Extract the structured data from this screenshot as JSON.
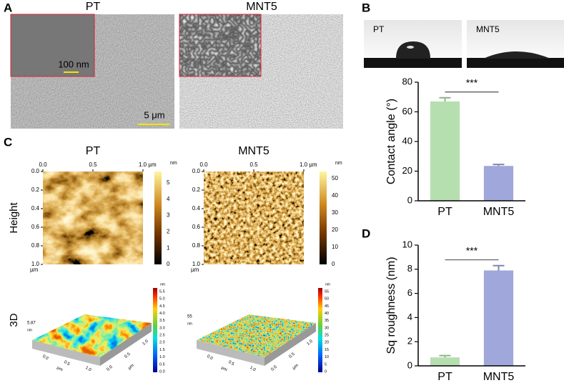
{
  "panel_labels": [
    "A",
    "B",
    "C",
    "D"
  ],
  "sem": {
    "titles": [
      "PT",
      "MNT5"
    ],
    "inset_scale": "100 nm",
    "scale": "5 μm"
  },
  "wetting": {
    "labels": [
      "PT",
      "MNT5"
    ]
  },
  "afm": {
    "titles": [
      "PT",
      "MNT5"
    ],
    "rows": [
      "Height",
      "3D"
    ],
    "x_ticks": [
      "0.0",
      "0.5",
      "1.0 µm"
    ],
    "y_ticks": [
      "0.0",
      "0.2",
      "0.4",
      "0.6",
      "0.8",
      "1.0"
    ],
    "y_unit": "µm",
    "unit": "nm",
    "height_cbar": [
      [
        "0",
        "1",
        "2",
        "3",
        "4",
        "5"
      ],
      [
        "0",
        "10",
        "20",
        "30",
        "40",
        "50"
      ]
    ],
    "cbar_3d": [
      [
        "0.0",
        "0.5",
        "1.0",
        "1.5",
        "2.0",
        "2.5",
        "3.0",
        "3.5",
        "4.0",
        "4.5",
        "5.0",
        "5.5"
      ],
      [
        "0",
        "5",
        "10",
        "15",
        "20",
        "25",
        "30",
        "35",
        "40",
        "45",
        "50",
        "55"
      ]
    ],
    "zmax_3d": [
      "5.87",
      "55"
    ],
    "axis_3d": [
      "0.0",
      "0.5",
      "1.0",
      "µm"
    ]
  },
  "chart_data": [
    {
      "type": "bar",
      "categories": [
        "PT",
        "MNT5"
      ],
      "values": [
        67,
        23.5
      ],
      "errors": [
        2.5,
        1
      ],
      "colors": [
        "#b6dfb0",
        "#9fa7db"
      ],
      "y_label": "Contact angle (°)",
      "annotation": "***",
      "ylim": [
        0,
        80
      ],
      "yticks": [
        0,
        20,
        40,
        60,
        80
      ]
    },
    {
      "type": "bar",
      "categories": [
        "PT",
        "MNT5"
      ],
      "values": [
        0.7,
        7.9
      ],
      "errors": [
        0.15,
        0.4
      ],
      "colors": [
        "#b6dfb0",
        "#9fa7db"
      ],
      "y_label": "Sq roughness (nm)",
      "annotation": "***",
      "ylim": [
        0,
        10
      ],
      "yticks": [
        0,
        2,
        4,
        6,
        8,
        10
      ]
    }
  ]
}
